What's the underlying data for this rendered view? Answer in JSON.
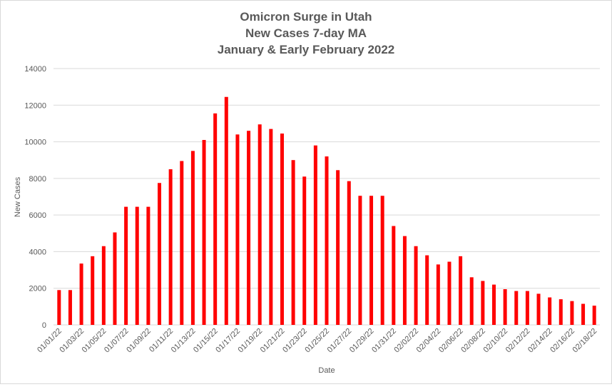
{
  "chart_data": {
    "type": "bar",
    "title_lines": [
      "Omicron Surge in Utah",
      "New Cases 7-day MA",
      "January & Early February 2022"
    ],
    "xlabel": "Date",
    "ylabel": "New Cases",
    "ylim": [
      0,
      14000
    ],
    "yticks": [
      0,
      2000,
      4000,
      6000,
      8000,
      10000,
      12000,
      14000
    ],
    "grid": true,
    "legend": "none",
    "bar_color": "#ff0000",
    "categories": [
      "01/01/22",
      "01/02/22",
      "01/03/22",
      "01/04/22",
      "01/05/22",
      "01/06/22",
      "01/07/22",
      "01/08/22",
      "01/09/22",
      "01/10/22",
      "01/11/22",
      "01/12/22",
      "01/13/22",
      "01/14/22",
      "01/15/22",
      "01/16/22",
      "01/17/22",
      "01/18/22",
      "01/19/22",
      "01/20/22",
      "01/21/22",
      "01/22/22",
      "01/23/22",
      "01/24/22",
      "01/25/22",
      "01/26/22",
      "01/27/22",
      "01/28/22",
      "01/29/22",
      "01/30/22",
      "01/31/22",
      "02/01/22",
      "02/02/22",
      "02/03/22",
      "02/04/22",
      "02/05/22",
      "02/06/22",
      "02/07/22",
      "02/08/22",
      "02/09/22",
      "02/10/22",
      "02/11/22",
      "02/12/22",
      "02/13/22",
      "02/14/22",
      "02/15/22",
      "02/16/22",
      "02/17/22",
      "02/18/22"
    ],
    "values": [
      1900,
      1900,
      3350,
      3750,
      4300,
      5050,
      6450,
      6450,
      6450,
      7750,
      8500,
      8950,
      9500,
      10100,
      11550,
      12450,
      10400,
      10600,
      10950,
      10700,
      10450,
      9000,
      8100,
      9800,
      9200,
      8450,
      7850,
      7050,
      7050,
      7050,
      5400,
      4850,
      4300,
      3800,
      3300,
      3450,
      3750,
      2600,
      2400,
      2200,
      1950,
      1850,
      1850,
      1700,
      1500,
      1400,
      1300,
      1150,
      1050
    ],
    "tick_every": 2
  }
}
